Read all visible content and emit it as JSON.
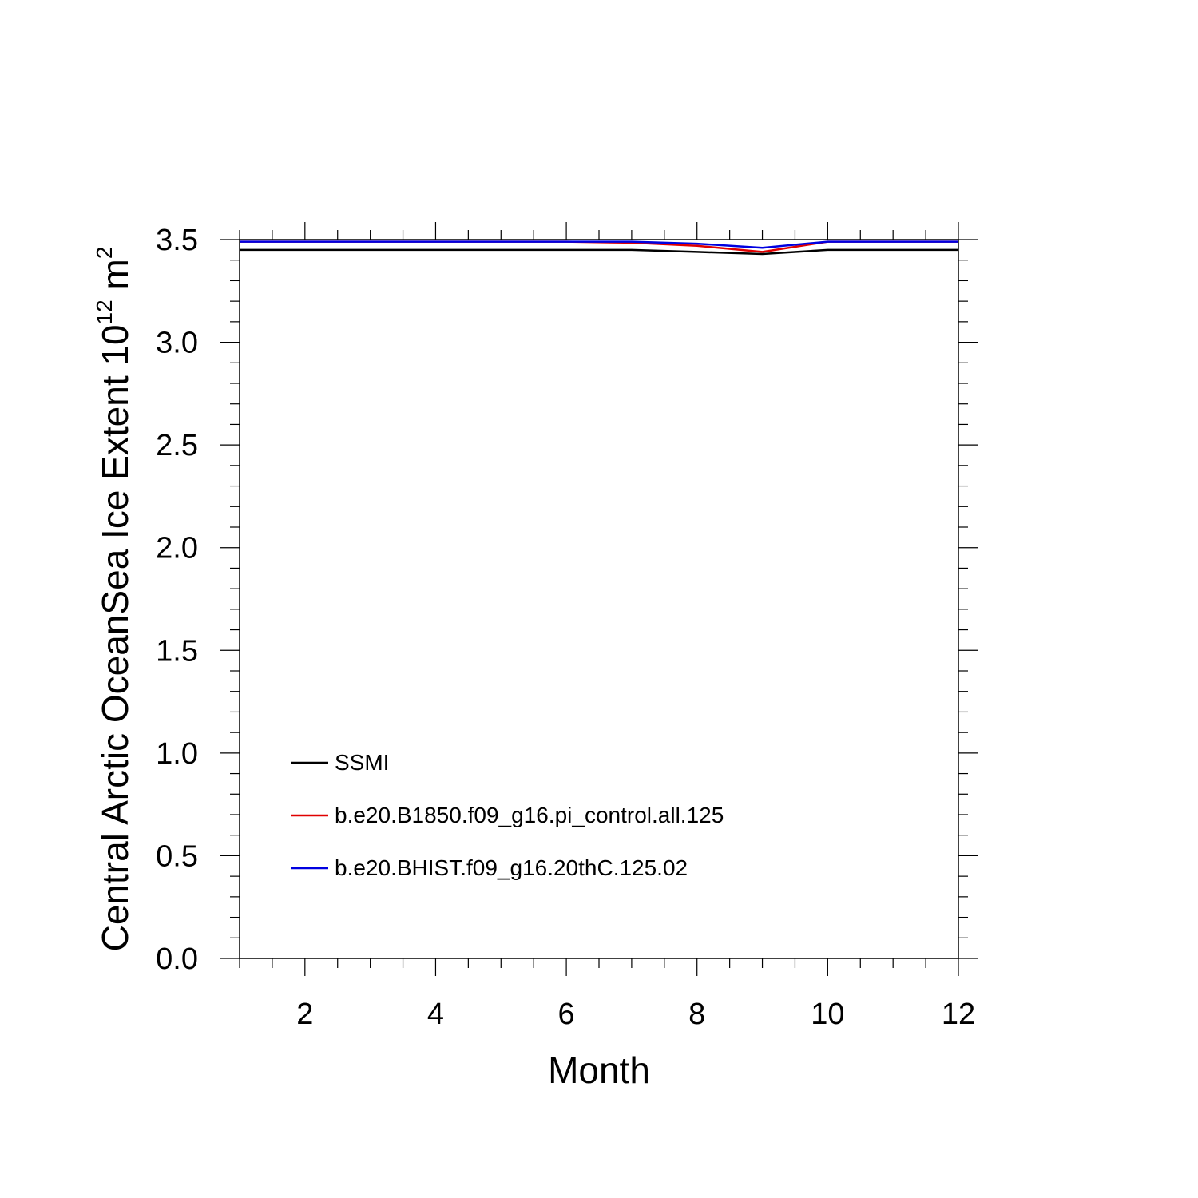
{
  "chart_data": {
    "type": "line",
    "title": "",
    "xlabel": "Month",
    "ylabel": {
      "prefix": "Central Arctic OceanSea Ice Extent 10",
      "exp1": "12",
      "unit": " m",
      "exp2": "2"
    },
    "xlim": [
      1,
      12
    ],
    "ylim": [
      0,
      3.5
    ],
    "x_ticks": [
      2,
      4,
      6,
      8,
      10,
      12
    ],
    "x_tick_labels": [
      "2",
      "4",
      "6",
      "8",
      "10",
      "12"
    ],
    "y_ticks": [
      0,
      0.5,
      1,
      1.5,
      2,
      2.5,
      3,
      3.5
    ],
    "y_tick_labels": [
      "0.0",
      "0.5",
      "1.0",
      "1.5",
      "2.0",
      "2.5",
      "3.0",
      "3.5"
    ],
    "x": [
      1,
      2,
      3,
      4,
      5,
      6,
      7,
      8,
      9,
      10,
      11,
      12
    ],
    "series": [
      {
        "name": "SSMI",
        "color": "#000000",
        "values": [
          3.45,
          3.45,
          3.45,
          3.45,
          3.45,
          3.45,
          3.45,
          3.44,
          3.43,
          3.45,
          3.45,
          3.45
        ]
      },
      {
        "name": "b.e20.B1850.f09_g16.pi_control.all.125",
        "color": "#e00000",
        "values": [
          3.49,
          3.49,
          3.49,
          3.49,
          3.49,
          3.49,
          3.485,
          3.47,
          3.44,
          3.49,
          3.49,
          3.49
        ]
      },
      {
        "name": "b.e20.BHIST.f09_g16.20thC.125.02",
        "color": "#0000e0",
        "values": [
          3.49,
          3.49,
          3.49,
          3.49,
          3.49,
          3.49,
          3.49,
          3.48,
          3.46,
          3.49,
          3.49,
          3.49
        ]
      }
    ],
    "legend_position": "bottom-left",
    "grid": false
  }
}
